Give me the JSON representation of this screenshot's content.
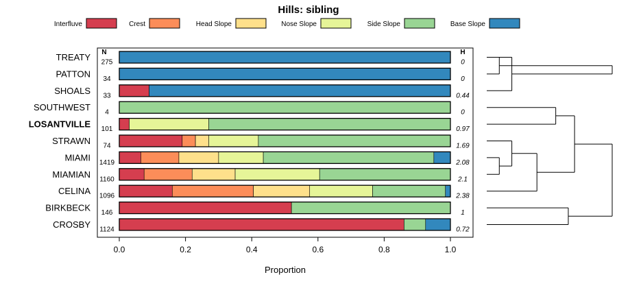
{
  "chart_data": {
    "type": "bar",
    "stacked": true,
    "orientation": "horizontal",
    "title": "Hills: sibling",
    "xlabel": "Proportion",
    "xlim": [
      0,
      1
    ],
    "x_ticks": [
      "0.0",
      "0.2",
      "0.4",
      "0.6",
      "0.8",
      "1.0"
    ],
    "n_header": "N",
    "h_header": "H",
    "legend": [
      {
        "name": "Interfluve",
        "color": "#D53E4F"
      },
      {
        "name": "Crest",
        "color": "#FC8D59"
      },
      {
        "name": "Head Slope",
        "color": "#FEE08B"
      },
      {
        "name": "Nose Slope",
        "color": "#E6F598"
      },
      {
        "name": "Side Slope",
        "color": "#99D594"
      },
      {
        "name": "Base Slope",
        "color": "#3288BD"
      }
    ],
    "rows": [
      {
        "name": "TREATY",
        "n": "275",
        "h": "0",
        "bold": false,
        "values": [
          0,
          0,
          0,
          0,
          0,
          1.0
        ]
      },
      {
        "name": "PATTON",
        "n": "34",
        "h": "0",
        "bold": false,
        "values": [
          0,
          0,
          0,
          0,
          0,
          1.0
        ]
      },
      {
        "name": "SHOALS",
        "n": "33",
        "h": "0.44",
        "bold": false,
        "values": [
          0.09,
          0,
          0,
          0,
          0,
          0.91
        ]
      },
      {
        "name": "SOUTHWEST",
        "n": "4",
        "h": "0",
        "bold": false,
        "values": [
          0,
          0,
          0,
          0,
          1.0,
          0
        ]
      },
      {
        "name": "LOSANTVILLE",
        "n": "101",
        "h": "0.97",
        "bold": true,
        "values": [
          0.03,
          0,
          0,
          0.24,
          0.73,
          0
        ]
      },
      {
        "name": "STRAWN",
        "n": "74",
        "h": "1.69",
        "bold": false,
        "values": [
          0.19,
          0.04,
          0.04,
          0.15,
          0.58,
          0
        ]
      },
      {
        "name": "MIAMI",
        "n": "1419",
        "h": "2.08",
        "bold": false,
        "values": [
          0.065,
          0.115,
          0.12,
          0.135,
          0.515,
          0.05
        ]
      },
      {
        "name": "MIAMIAN",
        "n": "1160",
        "h": "2.1",
        "bold": false,
        "values": [
          0.075,
          0.145,
          0.13,
          0.255,
          0.395,
          0
        ]
      },
      {
        "name": "CELINA",
        "n": "1096",
        "h": "2.38",
        "bold": false,
        "values": [
          0.16,
          0.245,
          0.17,
          0.19,
          0.22,
          0.015
        ]
      },
      {
        "name": "BIRKBECK",
        "n": "146",
        "h": "1",
        "bold": false,
        "values": [
          0.52,
          0,
          0,
          0,
          0.48,
          0
        ]
      },
      {
        "name": "CROSBY",
        "n": "1124",
        "h": "0.72",
        "bold": false,
        "values": [
          0.86,
          0,
          0,
          0,
          0.065,
          0.075
        ]
      }
    ],
    "dendrogram": [
      [
        0,
        1,
        0.1
      ],
      [
        2,
        0,
        0.2
      ],
      [
        3,
        4,
        0.55
      ],
      [
        6,
        7,
        0.1
      ],
      [
        5,
        14,
        0.2
      ],
      [
        8,
        15,
        0.4
      ],
      [
        13,
        16,
        0.7
      ],
      [
        9,
        10,
        0.65
      ],
      [
        11,
        12,
        1.0
      ],
      [
        17,
        18,
        1.0
      ]
    ]
  }
}
